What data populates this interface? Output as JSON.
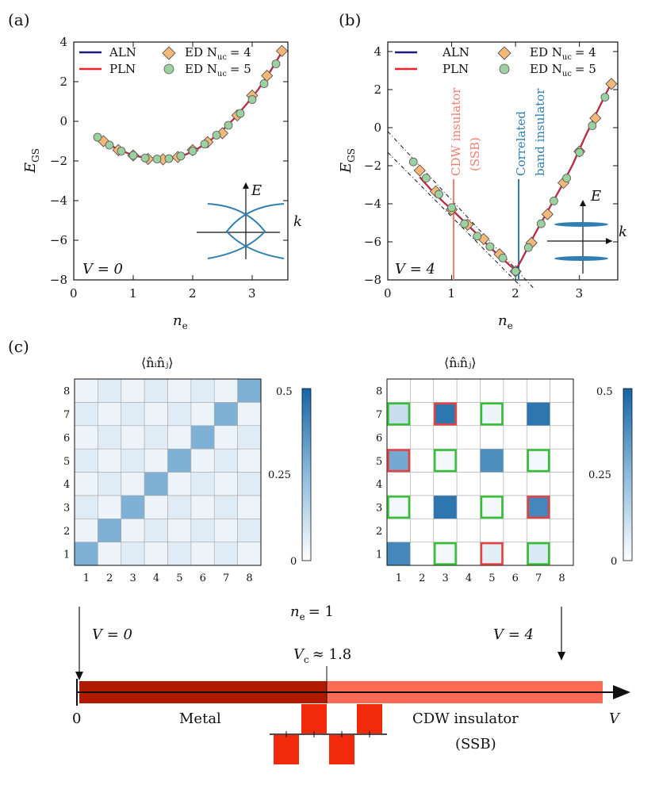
{
  "panels": {
    "a": "(a)",
    "b": "(b)",
    "c": "(c)"
  },
  "colors": {
    "aln": "#1a1a7a",
    "pln": "#e8242a",
    "ed4_fill": "#f3b87a",
    "ed5_fill": "#9dd0a0",
    "cdw_line": "#f08070",
    "cbi_line": "#2f7fb0",
    "band_blue": "#2f7fb0",
    "metal": "#b01a00",
    "cdw_bar": "#ff6a55",
    "cell_highlight_red": "#e84040",
    "cell_highlight_green": "#30c030",
    "pattern": "#f02a0a"
  },
  "chart_data": [
    {
      "id": "a",
      "type": "line+scatter",
      "ylabel": "E_GS",
      "ylabel_main": "E",
      "ylabel_sub": "GS",
      "xlabel": "n_e",
      "xlabel_main": "n",
      "xlabel_sub": "e",
      "xlim": [
        0,
        3.6
      ],
      "ylim": [
        -8,
        4
      ],
      "xticks": [
        0,
        1,
        2,
        3
      ],
      "yticks": [
        4,
        2,
        0,
        -2,
        -4,
        -6,
        -8
      ],
      "xtick_labels": [
        "0",
        "1",
        "2",
        "3"
      ],
      "ytick_labels": [
        "4",
        "2",
        "0",
        "−2",
        "−4",
        "−6",
        "−8"
      ],
      "annotation": "V = 0",
      "inset_E": "E",
      "inset_k": "k",
      "legend": [
        {
          "label": "ALN",
          "kind": "line",
          "color": "#1a1a7a"
        },
        {
          "label": "PLN",
          "kind": "line",
          "color": "#e8242a"
        },
        {
          "label": "ED N_uc = 4",
          "kind": "diamond"
        },
        {
          "label": "ED N_uc = 5",
          "kind": "circle"
        }
      ],
      "legend_text": {
        "aln": "ALN",
        "pln": "PLN",
        "ed4": "ED N",
        "ed4_sub": "uc",
        "ed4_tail": "= 4",
        "ed5": "ED N",
        "ed5_sub": "uc",
        "ed5_tail": "= 5"
      },
      "aln": {
        "x": [
          0.5,
          0.7,
          0.9,
          1.1,
          1.3,
          1.5,
          1.7,
          1.9,
          2.1,
          2.3,
          2.5,
          2.7,
          2.9,
          3.1,
          3.3,
          3.5
        ],
        "y": [
          -0.95,
          -1.35,
          -1.6,
          -1.78,
          -1.88,
          -1.92,
          -1.85,
          -1.65,
          -1.35,
          -0.95,
          -0.45,
          0.15,
          0.85,
          1.6,
          2.5,
          3.5
        ]
      },
      "pln": {
        "x": [
          0.5,
          0.7,
          0.9,
          1.1,
          1.3,
          1.5,
          1.7,
          1.9,
          2.1,
          2.3,
          2.5,
          2.7,
          2.9,
          3.1,
          3.3,
          3.5
        ],
        "y": [
          -0.95,
          -1.35,
          -1.6,
          -1.78,
          -1.88,
          -1.92,
          -1.85,
          -1.65,
          -1.35,
          -0.95,
          -0.45,
          0.15,
          0.85,
          1.6,
          2.5,
          3.5
        ]
      },
      "ed4": {
        "x": [
          0.5,
          0.75,
          1.0,
          1.25,
          1.5,
          1.75,
          2.0,
          2.25,
          2.5,
          2.75,
          3.0,
          3.25,
          3.5
        ],
        "y": [
          -1.0,
          -1.45,
          -1.72,
          -1.9,
          -1.92,
          -1.8,
          -1.45,
          -1.05,
          -0.6,
          0.3,
          1.3,
          2.3,
          3.55
        ]
      },
      "ed5": {
        "x": [
          0.4,
          0.6,
          0.8,
          1.0,
          1.2,
          1.4,
          1.6,
          1.8,
          2.0,
          2.2,
          2.4,
          2.6,
          2.8,
          3.0,
          3.2,
          3.4
        ],
        "y": [
          -0.8,
          -1.2,
          -1.5,
          -1.72,
          -1.85,
          -1.9,
          -1.88,
          -1.75,
          -1.5,
          -1.15,
          -0.7,
          -0.2,
          0.4,
          1.1,
          1.9,
          2.9
        ]
      }
    },
    {
      "id": "b",
      "type": "line+scatter",
      "ylabel": "E_GS",
      "ylabel_main": "E",
      "ylabel_sub": "GS",
      "xlabel": "n_e",
      "xlabel_main": "n",
      "xlabel_sub": "e",
      "xlim": [
        0,
        3.6
      ],
      "ylim": [
        -8,
        4.5
      ],
      "xticks": [
        0,
        1,
        2,
        3
      ],
      "yticks": [
        4,
        2,
        0,
        -2,
        -4,
        -6,
        -8
      ],
      "xtick_labels": [
        "0",
        "1",
        "2",
        "3"
      ],
      "ytick_labels": [
        "4",
        "2",
        "0",
        "−2",
        "−4",
        "−6",
        "−8"
      ],
      "annotation": "V = 4",
      "inset_E": "E",
      "inset_k": "k",
      "cdw_label": "CDW insulator",
      "ssb_label": "(SSB)",
      "cbi_label_1": "Correlated",
      "cbi_label_2": "band insulator",
      "aln": {
        "x": [
          0.5,
          0.7,
          0.9,
          1.0,
          1.2,
          1.4,
          1.6,
          1.8,
          1.95,
          2.0,
          2.1,
          2.3,
          2.5,
          2.7,
          2.9,
          3.1,
          3.3,
          3.5
        ],
        "y": [
          -2.6,
          -3.35,
          -4.0,
          -4.3,
          -4.95,
          -5.6,
          -6.3,
          -6.9,
          -7.35,
          -7.5,
          -6.9,
          -5.6,
          -4.4,
          -3.2,
          -1.9,
          -0.4,
          1.0,
          2.35
        ]
      },
      "pln": {
        "x": [
          0.5,
          0.7,
          0.9,
          1.0,
          1.2,
          1.4,
          1.6,
          1.8,
          1.95,
          2.0,
          2.1,
          2.3,
          2.5,
          2.7,
          2.9,
          3.1,
          3.3,
          3.5
        ],
        "y": [
          -2.6,
          -3.35,
          -4.0,
          -4.3,
          -4.95,
          -5.6,
          -6.3,
          -6.9,
          -7.35,
          -7.45,
          -6.9,
          -5.6,
          -4.4,
          -3.2,
          -1.9,
          -0.4,
          1.0,
          2.35
        ]
      },
      "ed4": {
        "x": [
          0.5,
          0.75,
          1.0,
          1.25,
          1.5,
          1.75,
          2.0,
          2.25,
          2.5,
          2.75,
          3.0,
          3.25,
          3.5
        ],
        "y": [
          -2.25,
          -3.35,
          -4.3,
          -5.1,
          -5.85,
          -6.65,
          -7.55,
          -6.05,
          -4.55,
          -2.9,
          -1.25,
          0.5,
          2.3
        ]
      },
      "ed5": {
        "x": [
          0.4,
          0.6,
          0.8,
          1.0,
          1.2,
          1.4,
          1.6,
          1.8,
          2.0,
          2.2,
          2.4,
          2.6,
          2.8,
          3.0,
          3.2,
          3.4
        ],
        "y": [
          -1.8,
          -2.65,
          -3.5,
          -4.2,
          -5.05,
          -5.7,
          -6.25,
          -6.85,
          -7.55,
          -6.3,
          -5.05,
          -3.85,
          -2.65,
          -1.3,
          0.1,
          1.6
        ]
      },
      "dash1": {
        "x": [
          0,
          2.3
        ],
        "y": [
          -0.2,
          -8.5
        ]
      },
      "dash2": {
        "x": [
          0,
          2.1
        ],
        "y": [
          -1.3,
          -8.4
        ]
      }
    },
    {
      "id": "c-left",
      "type": "heatmap",
      "title": "⟨n̂ᵢn̂ⱼ⟩",
      "colorbar_ticks": [
        "0.5",
        "0.25",
        "0"
      ],
      "axis_ticks": [
        "1",
        "2",
        "3",
        "4",
        "5",
        "6",
        "7",
        "8"
      ],
      "values": [
        [
          0.28,
          0.04,
          0.07,
          0.04,
          0.07,
          0.04,
          0.07,
          0.04
        ],
        [
          0.04,
          0.28,
          0.04,
          0.07,
          0.04,
          0.07,
          0.04,
          0.07
        ],
        [
          0.07,
          0.04,
          0.28,
          0.04,
          0.07,
          0.04,
          0.07,
          0.04
        ],
        [
          0.04,
          0.07,
          0.04,
          0.28,
          0.04,
          0.07,
          0.04,
          0.07
        ],
        [
          0.07,
          0.04,
          0.07,
          0.04,
          0.28,
          0.04,
          0.07,
          0.04
        ],
        [
          0.04,
          0.07,
          0.04,
          0.07,
          0.04,
          0.28,
          0.04,
          0.07
        ],
        [
          0.07,
          0.04,
          0.07,
          0.04,
          0.07,
          0.04,
          0.28,
          0.04
        ],
        [
          0.04,
          0.07,
          0.04,
          0.07,
          0.04,
          0.07,
          0.04,
          0.28
        ]
      ]
    },
    {
      "id": "c-right",
      "type": "heatmap",
      "title": "⟨n̂ᵢn̂ⱼ⟩",
      "colorbar_ticks": [
        "0.5",
        "0.25",
        "0"
      ],
      "axis_ticks": [
        "1",
        "2",
        "3",
        "4",
        "5",
        "6",
        "7",
        "8"
      ],
      "values": [
        [
          0.4,
          0.0,
          0.03,
          0.0,
          0.06,
          0.0,
          0.08,
          0.0
        ],
        [
          0.0,
          0.0,
          0.0,
          0.0,
          0.0,
          0.0,
          0.0,
          0.0
        ],
        [
          0.03,
          0.0,
          0.45,
          0.0,
          0.03,
          0.0,
          0.4,
          0.0
        ],
        [
          0.0,
          0.0,
          0.0,
          0.0,
          0.0,
          0.0,
          0.0,
          0.0
        ],
        [
          0.3,
          0.0,
          0.03,
          0.0,
          0.38,
          0.0,
          0.03,
          0.0
        ],
        [
          0.0,
          0.0,
          0.0,
          0.0,
          0.0,
          0.0,
          0.0,
          0.0
        ],
        [
          0.12,
          0.0,
          0.45,
          0.0,
          0.04,
          0.0,
          0.45,
          0.0
        ],
        [
          0.0,
          0.0,
          0.0,
          0.0,
          0.0,
          0.0,
          0.0,
          0.0
        ]
      ],
      "red_cells": [
        [
          3,
          7
        ],
        [
          1,
          5
        ],
        [
          7,
          3
        ],
        [
          5,
          1
        ]
      ],
      "green_cells": [
        [
          1,
          7
        ],
        [
          5,
          7
        ],
        [
          3,
          5
        ],
        [
          7,
          5
        ],
        [
          1,
          3
        ],
        [
          5,
          3
        ],
        [
          3,
          1
        ],
        [
          7,
          1
        ]
      ]
    }
  ],
  "phase_diagram": {
    "ne_label": "n_e = 1",
    "ne_main": "n",
    "ne_sub": "e",
    "ne_tail": "= 1",
    "v0_label": "V = 0",
    "v4_label": "V = 4",
    "vc_label": "V_c ≈ 1.8",
    "vc_main": "V",
    "vc_sub": "c",
    "vc_tail": "≈ 1.8",
    "zero": "0",
    "axis_var": "V",
    "metal": "Metal",
    "cdw": "CDW insulator",
    "ssb": "(SSB)"
  }
}
